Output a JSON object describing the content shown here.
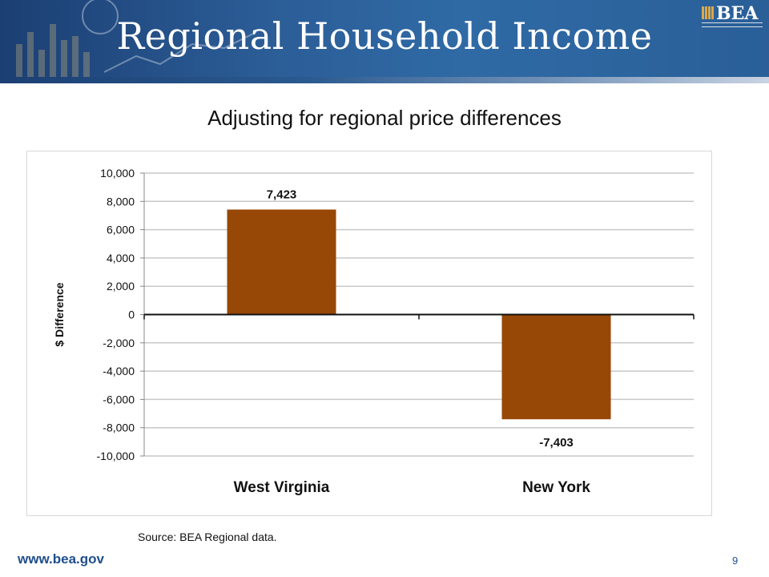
{
  "slide": {
    "title": "Regional Household Income",
    "logo_text": "BEA",
    "source": "Source: BEA Regional data.",
    "website": "www.bea.gov",
    "page_number": "9"
  },
  "chart_data": {
    "type": "bar",
    "title": "Adjusting for regional price differences",
    "xlabel": "",
    "ylabel": "$ Difference",
    "categories": [
      "West Virginia",
      "New York"
    ],
    "values": [
      7423,
      -7403
    ],
    "value_labels": [
      "7,423",
      "-7,403"
    ],
    "ylim": [
      -10000,
      10000
    ],
    "yticks": [
      10000,
      8000,
      6000,
      4000,
      2000,
      0,
      -2000,
      -4000,
      -6000,
      -8000,
      -10000
    ],
    "ytick_labels": [
      "10,000",
      "8,000",
      "6,000",
      "4,000",
      "2,000",
      "0",
      "-2,000",
      "-4,000",
      "-6,000",
      "-8,000",
      "-10,000"
    ],
    "grid": true,
    "legend": "none",
    "bar_color": "#974706"
  }
}
